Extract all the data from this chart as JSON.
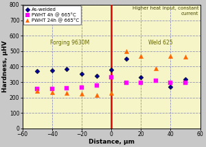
{
  "title_annotation": "Higher heat input, constant\ncurrent",
  "xlabel": "Distance, μm",
  "ylabel": "Hardness, μHV",
  "xlim": [
    -60,
    60
  ],
  "ylim": [
    0,
    800
  ],
  "xticks": [
    -60,
    -40,
    -20,
    0,
    20,
    40,
    60
  ],
  "yticks": [
    0,
    100,
    200,
    300,
    400,
    500,
    600,
    700,
    800
  ],
  "background_color": "#f5f5c8",
  "plot_bg_color": "#f5f5c8",
  "fig_bg_color": "#c8c8c8",
  "grid_color": "#7777bb",
  "vline_color": "#dd0000",
  "label_left": "Forging 9630M",
  "label_right": "Weld 625",
  "annotation": "Higher heat input, constant\ncurrent",
  "series": {
    "as_welded": {
      "x": [
        -50,
        -40,
        -30,
        -20,
        -10,
        0,
        10,
        20,
        40,
        50
      ],
      "y": [
        370,
        375,
        385,
        355,
        340,
        380,
        450,
        330,
        270,
        320
      ],
      "color": "#000099",
      "marker": "D",
      "label": "As-welded",
      "markersize": 3.5
    },
    "pwht_4h": {
      "x": [
        -50,
        -40,
        -30,
        -20,
        -10,
        0,
        10,
        20,
        30,
        40,
        50
      ],
      "y": [
        255,
        255,
        260,
        265,
        280,
        330,
        295,
        295,
        310,
        295,
        295
      ],
      "color": "#ff00ff",
      "marker": "s",
      "label": "PWHT 4h @ 665°C",
      "markersize": 4.5
    },
    "pwht_24h": {
      "x": [
        -50,
        -40,
        -30,
        -20,
        -10,
        0,
        10,
        20,
        30,
        40,
        50
      ],
      "y": [
        245,
        235,
        230,
        225,
        215,
        230,
        500,
        470,
        390,
        470,
        465
      ],
      "color": "#ff6600",
      "marker": "^",
      "label": "PWHT 24h @ 665°C",
      "markersize": 4.5
    }
  },
  "legend_fontsize": 5.0,
  "axis_label_fontsize": 6.5,
  "tick_fontsize": 5.5,
  "annotation_fontsize": 5.0,
  "zone_label_fontsize": 5.5
}
